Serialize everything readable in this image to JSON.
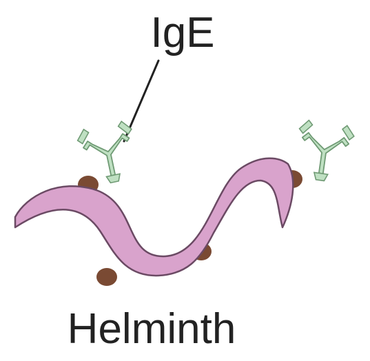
{
  "labels": {
    "antibody": "IgE",
    "organism": "Helminth"
  },
  "colors": {
    "worm_fill": "#d9a3cc",
    "worm_outline": "#6b4a64",
    "antibody_fill": "#bfe0c2",
    "antibody_outline": "#6f9a74",
    "receptor": "#7a4a33",
    "text": "#222222"
  }
}
